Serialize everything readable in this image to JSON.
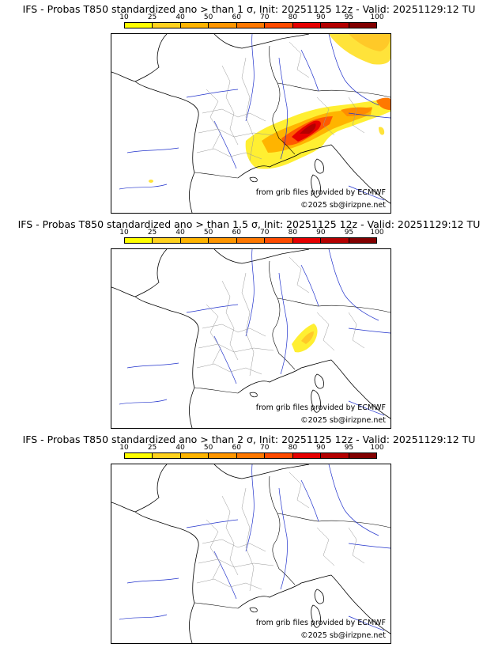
{
  "legend": {
    "levels": [
      "10",
      "25",
      "40",
      "50",
      "60",
      "70",
      "80",
      "90",
      "95",
      "100"
    ],
    "colors": [
      "#ffff00",
      "#ffd21e",
      "#ffb400",
      "#ff9600",
      "#ff7800",
      "#ff4b00",
      "#e60000",
      "#b40000",
      "#820000"
    ]
  },
  "map_credits": {
    "source": "from grib files provided by ECMWF",
    "copyright": "©2025 sb@irizpne.net"
  },
  "panels": [
    {
      "title": "IFS - Probas T850  standardized ano > than 1 σ, Init: 20251125 12z - Valid: 20251129:12 TU"
    },
    {
      "title": "IFS - Probas T850  standardized ano > than 1.5 σ, Init: 20251125 12z - Valid: 20251129:12 TU"
    },
    {
      "title": "IFS - Probas T850  standardized ano > than 2 σ, Init: 20251125 12z - Valid: 20251129:12 TU"
    }
  ]
}
